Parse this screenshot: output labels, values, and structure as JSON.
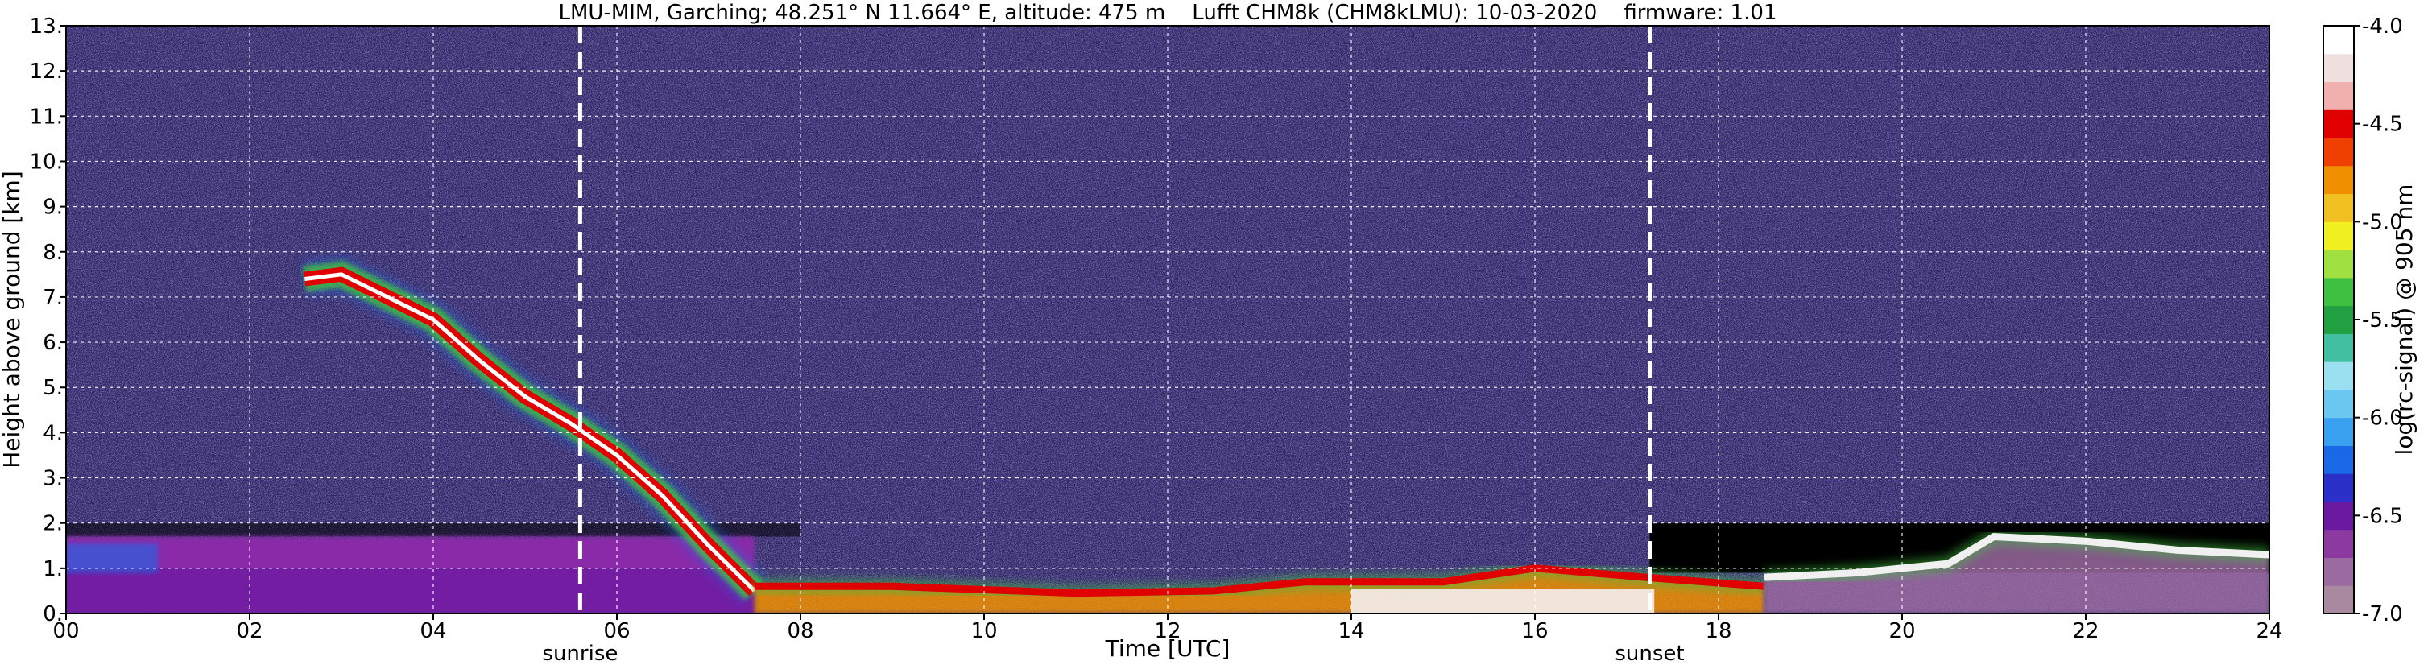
{
  "chart_data": {
    "type": "heatmap",
    "title": "LMU-MIM, Garching; 48.251° N 11.664° E, altitude: 475 m    Lufft CHM8k (CHM8kLMU): 10-03-2020    firmware: 1.01",
    "xlabel": "Time [UTC]",
    "ylabel": "Height above ground [km]",
    "colorbar_label": "log(rc-signal) @ 905 nm",
    "xlim": [
      0,
      24
    ],
    "ylim": [
      0,
      13
    ],
    "x_ticks": [
      "00",
      "02",
      "04",
      "06",
      "08",
      "10",
      "12",
      "14",
      "16",
      "18",
      "20",
      "22",
      "24"
    ],
    "y_ticks": [
      "0.",
      "1.",
      "2.",
      "3.",
      "4.",
      "5.",
      "6.",
      "7.",
      "8.",
      "9.",
      "10.",
      "11.",
      "12.",
      "13."
    ],
    "clim": [
      -7.0,
      -4.0
    ],
    "colorbar_ticks": [
      "-4.0",
      "-4.5",
      "-5.0",
      "-5.5",
      "-6.0",
      "-6.5",
      "-7.0"
    ],
    "grid": true,
    "annotations": [
      {
        "text": "sunrise",
        "x": 5.6
      },
      {
        "text": "sunset",
        "x": 17.25
      }
    ],
    "layers": [
      {
        "feature": "boundary layer (low signal)",
        "x_start": 0,
        "x_end": 7.5,
        "height_km": [
          0,
          1.7
        ],
        "value": -6.4
      },
      {
        "feature": "elevated aerosol layer, descending",
        "points": [
          [
            2.6,
            7.4
          ],
          [
            3.0,
            7.5
          ],
          [
            3.5,
            7.0
          ],
          [
            4.0,
            6.5
          ],
          [
            4.5,
            5.6
          ],
          [
            5.0,
            4.8
          ],
          [
            5.5,
            4.2
          ],
          [
            6.0,
            3.5
          ],
          [
            6.5,
            2.6
          ],
          [
            7.0,
            1.5
          ],
          [
            7.5,
            0.5
          ]
        ],
        "value": -4.5
      },
      {
        "feature": "daytime mixed layer",
        "points": [
          [
            7.5,
            0.6
          ],
          [
            9,
            0.6
          ],
          [
            11,
            0.45
          ],
          [
            12.5,
            0.5
          ],
          [
            13.5,
            0.7
          ],
          [
            15,
            0.7
          ],
          [
            16,
            1.0
          ],
          [
            17.2,
            0.8
          ],
          [
            18.5,
            0.6
          ]
        ],
        "value": -4.6
      },
      {
        "feature": "evening residual layer",
        "points": [
          [
            18.5,
            0.8
          ],
          [
            19.5,
            0.9
          ],
          [
            20.5,
            1.1
          ],
          [
            21,
            1.7
          ],
          [
            22,
            1.6
          ],
          [
            23,
            1.4
          ],
          [
            24,
            1.3
          ]
        ],
        "value": -4.3
      }
    ],
    "colors": {
      "noise": "#3a2e6e",
      "night_below_2km": "#000000",
      "boundary_layer": "#8a2aa8",
      "sunrise_sunset_lines": "#ffffff",
      "grid": "#ffffff"
    },
    "colormap": [
      "#a8899f",
      "#9b6aa0",
      "#8c3aa0",
      "#6a1aa0",
      "#2a30c8",
      "#1a6ae8",
      "#3aa0f0",
      "#6ac8f0",
      "#9ae0f0",
      "#40c0a0",
      "#20a040",
      "#40c040",
      "#a0e040",
      "#f0f020",
      "#f0c020",
      "#f09000",
      "#f04000",
      "#e00000",
      "#f0b0b0",
      "#f0e0e0",
      "#ffffff"
    ]
  }
}
